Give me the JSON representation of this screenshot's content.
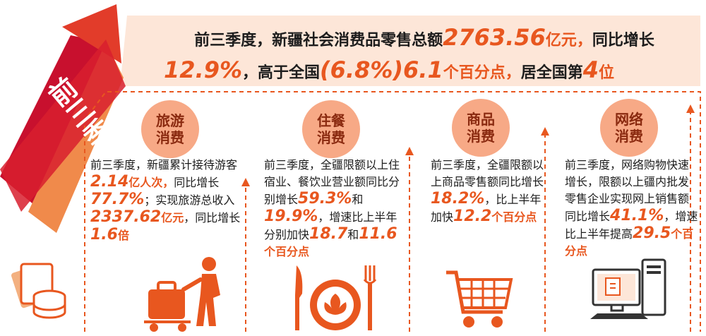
{
  "title": {
    "line1_text": "前三季度，新疆社会消费品零售总额",
    "line1_value": "2763.56",
    "line1_unit": "亿元，",
    "line1_tail": "同比增长",
    "line2_value": "12.9%",
    "line2_text": "，高于全国",
    "line2_national": "(6.8%)",
    "line2_points": "6.1",
    "line2_points_unit": "个百分点，",
    "line2_rank_text": "居全国第",
    "line2_rank": "4",
    "line2_rank_unit": "位"
  },
  "side_label": "前三季度",
  "colors": {
    "accent": "#e8571f",
    "badge": "#f7a986",
    "arrow_dark": "#c8102e",
    "header_bg": "#fde6d8"
  },
  "panels": [
    {
      "badge_line1": "旅游",
      "badge_line2": "消费",
      "t1": "前三季度，新疆累计接待游客",
      "v1": "2.14",
      "u1": "亿人次，",
      "t2": "同比增长",
      "v2": "77.7%",
      "t3": "；实现旅游总收入",
      "v3": "2337.62",
      "u3": "亿元",
      "t4": "，同比增长",
      "v4": "1.6",
      "u4": "倍",
      "icon": "luggage-cart-icon"
    },
    {
      "badge_line1": "住餐",
      "badge_line2": "消费",
      "t1": "前三季度，全疆限额以上住宿业、餐饮业营业额同比分别增长",
      "v1": "59.3%",
      "t2": "和",
      "v2": "19.9%",
      "t3": "，增速比上半年分别加快",
      "v3": "18.7",
      "t4": "和",
      "v4": "11.6",
      "u4": "个百分点",
      "icon": "knife-plate-fork-icon"
    },
    {
      "badge_line1": "商品",
      "badge_line2": "消费",
      "t1": "前三季度，全疆限额以上商品零售额同比增长",
      "v1": "18.2%",
      "t2": "，比上半年加快",
      "v2": "12.2",
      "u2": "个百分点",
      "icon": "shopping-cart-icon"
    },
    {
      "badge_line1": "网络",
      "badge_line2": "消费",
      "t1": "前三季度，网络购物快速增长，限额以上疆内批发零售企业实现网上销售额同比增长",
      "v1": "41.1%",
      "t2": "，增速比上半年提高",
      "v2": "29.5",
      "u2": "个百分点",
      "icon": "computer-icon"
    }
  ]
}
